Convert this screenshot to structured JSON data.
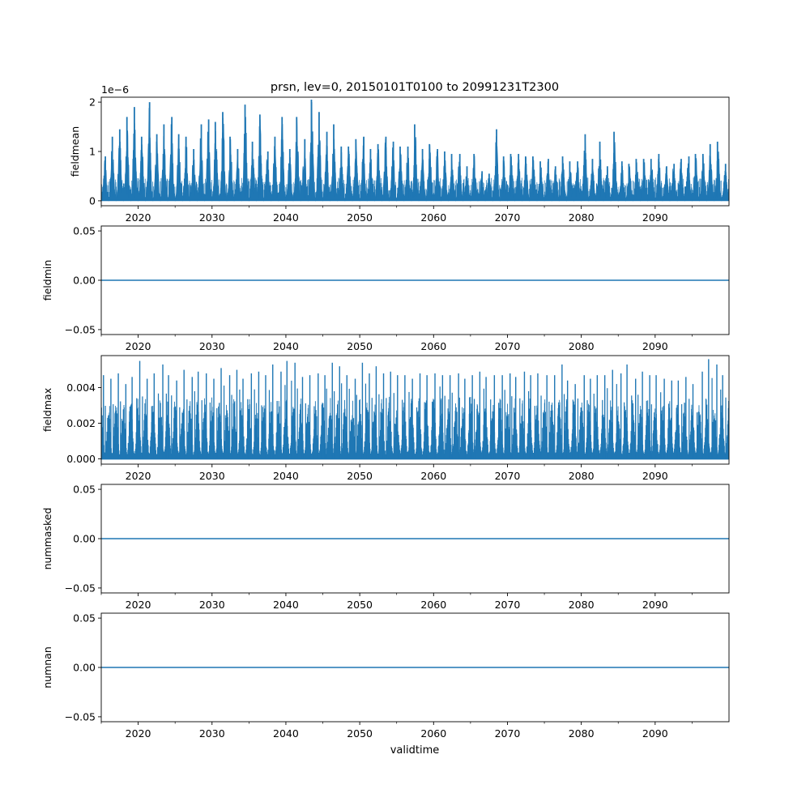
{
  "chart_data": {
    "title": "prsn, lev=0, 20150101T0100 to 20991231T2300",
    "xlabel": "validtime",
    "xlim": [
      2015.0,
      2100.0
    ],
    "xticks": [
      2020,
      2030,
      2040,
      2050,
      2060,
      2070,
      2080,
      2090
    ],
    "xtick_labels": [
      "2020",
      "2030",
      "2040",
      "2050",
      "2060",
      "2070",
      "2080",
      "2090"
    ],
    "line_color": "#1f77b4",
    "panels": [
      {
        "type": "line",
        "ylabel": "fieldmean",
        "offset_label": "1e−6",
        "ylim": [
          -0.1,
          2.1
        ],
        "yticks": [
          0,
          1,
          2
        ],
        "ytick_labels": [
          "0",
          "1",
          "2"
        ],
        "series": {
          "kind": "seasonal-spikes",
          "base": 0.05,
          "typical_trough": 0.3,
          "annual_peaks": [
            0.9,
            1.3,
            1.45,
            1.7,
            1.9,
            1.3,
            2.0,
            1.35,
            1.55,
            1.7,
            1.35,
            1.3,
            1.05,
            1.55,
            1.65,
            1.6,
            1.8,
            1.3,
            1.05,
            1.95,
            1.2,
            1.75,
            1.0,
            1.3,
            1.7,
            1.05,
            1.7,
            1.25,
            2.05,
            1.8,
            1.4,
            1.55,
            1.1,
            1.1,
            1.25,
            1.3,
            1.05,
            1.15,
            1.3,
            1.2,
            1.1,
            1.1,
            1.55,
            1.05,
            1.15,
            1.05,
            1.0,
            0.95,
            0.95,
            0.7,
            0.95,
            0.6,
            0.55,
            1.45,
            0.9,
            0.95,
            0.95,
            0.9,
            0.9,
            0.8,
            0.85,
            0.7,
            0.9,
            0.8,
            0.8,
            1.35,
            0.85,
            1.2,
            0.7,
            1.4,
            0.8,
            0.75,
            0.85,
            0.85,
            0.85,
            0.95,
            0.7,
            0.75,
            0.85,
            0.9,
            0.95,
            0.95,
            1.15,
            1.2,
            0.75
          ]
        }
      },
      {
        "type": "line",
        "ylabel": "fieldmin",
        "ylim": [
          -0.055,
          0.055
        ],
        "yticks": [
          -0.05,
          0.0,
          0.05
        ],
        "ytick_labels": [
          "−0.05",
          "0.00",
          "0.05"
        ],
        "series": {
          "kind": "constant",
          "value": 0.0
        }
      },
      {
        "type": "line",
        "ylabel": "fieldmax",
        "ylim": [
          -0.0003,
          0.0058
        ],
        "yticks": [
          0.0,
          0.002,
          0.004
        ],
        "ytick_labels": [
          "0.000",
          "0.002",
          "0.004"
        ],
        "series": {
          "kind": "noisy-seasonal",
          "typical_low": 0.0,
          "typical_high": 0.0035,
          "annual_peaks": [
            0.0047,
            0.0045,
            0.0048,
            0.0042,
            0.0046,
            0.0055,
            0.0045,
            0.0048,
            0.0053,
            0.0047,
            0.0044,
            0.005,
            0.0046,
            0.0049,
            0.0048,
            0.0045,
            0.0051,
            0.0047,
            0.005,
            0.0045,
            0.0048,
            0.0049,
            0.0047,
            0.0053,
            0.0049,
            0.0055,
            0.0054,
            0.0046,
            0.0047,
            0.0048,
            0.0047,
            0.0054,
            0.0052,
            0.0047,
            0.0045,
            0.0054,
            0.0048,
            0.0052,
            0.0048,
            0.0049,
            0.0047,
            0.0047,
            0.0045,
            0.0048,
            0.0047,
            0.0048,
            0.0047,
            0.0047,
            0.0048,
            0.0045,
            0.0047,
            0.0049,
            0.0046,
            0.0047,
            0.0047,
            0.0048,
            0.0046,
            0.0049,
            0.0047,
            0.0048,
            0.0047,
            0.0047,
            0.0053,
            0.0044,
            0.0042,
            0.0047,
            0.0045,
            0.0047,
            0.0047,
            0.005,
            0.0048,
            0.0053,
            0.0045,
            0.0049,
            0.0047,
            0.0047,
            0.0045,
            0.0044,
            0.0044,
            0.0046,
            0.0042,
            0.0049,
            0.0056,
            0.0053,
            0.0047
          ]
        }
      },
      {
        "type": "line",
        "ylabel": "nummasked",
        "ylim": [
          -0.055,
          0.055
        ],
        "yticks": [
          -0.05,
          0.0,
          0.05
        ],
        "ytick_labels": [
          "−0.05",
          "0.00",
          "0.05"
        ],
        "series": {
          "kind": "constant",
          "value": 0.0
        }
      },
      {
        "type": "line",
        "ylabel": "numnan",
        "ylim": [
          -0.055,
          0.055
        ],
        "yticks": [
          -0.05,
          0.0,
          0.05
        ],
        "ytick_labels": [
          "−0.05",
          "0.00",
          "0.05"
        ],
        "series": {
          "kind": "constant",
          "value": 0.0
        }
      }
    ]
  }
}
